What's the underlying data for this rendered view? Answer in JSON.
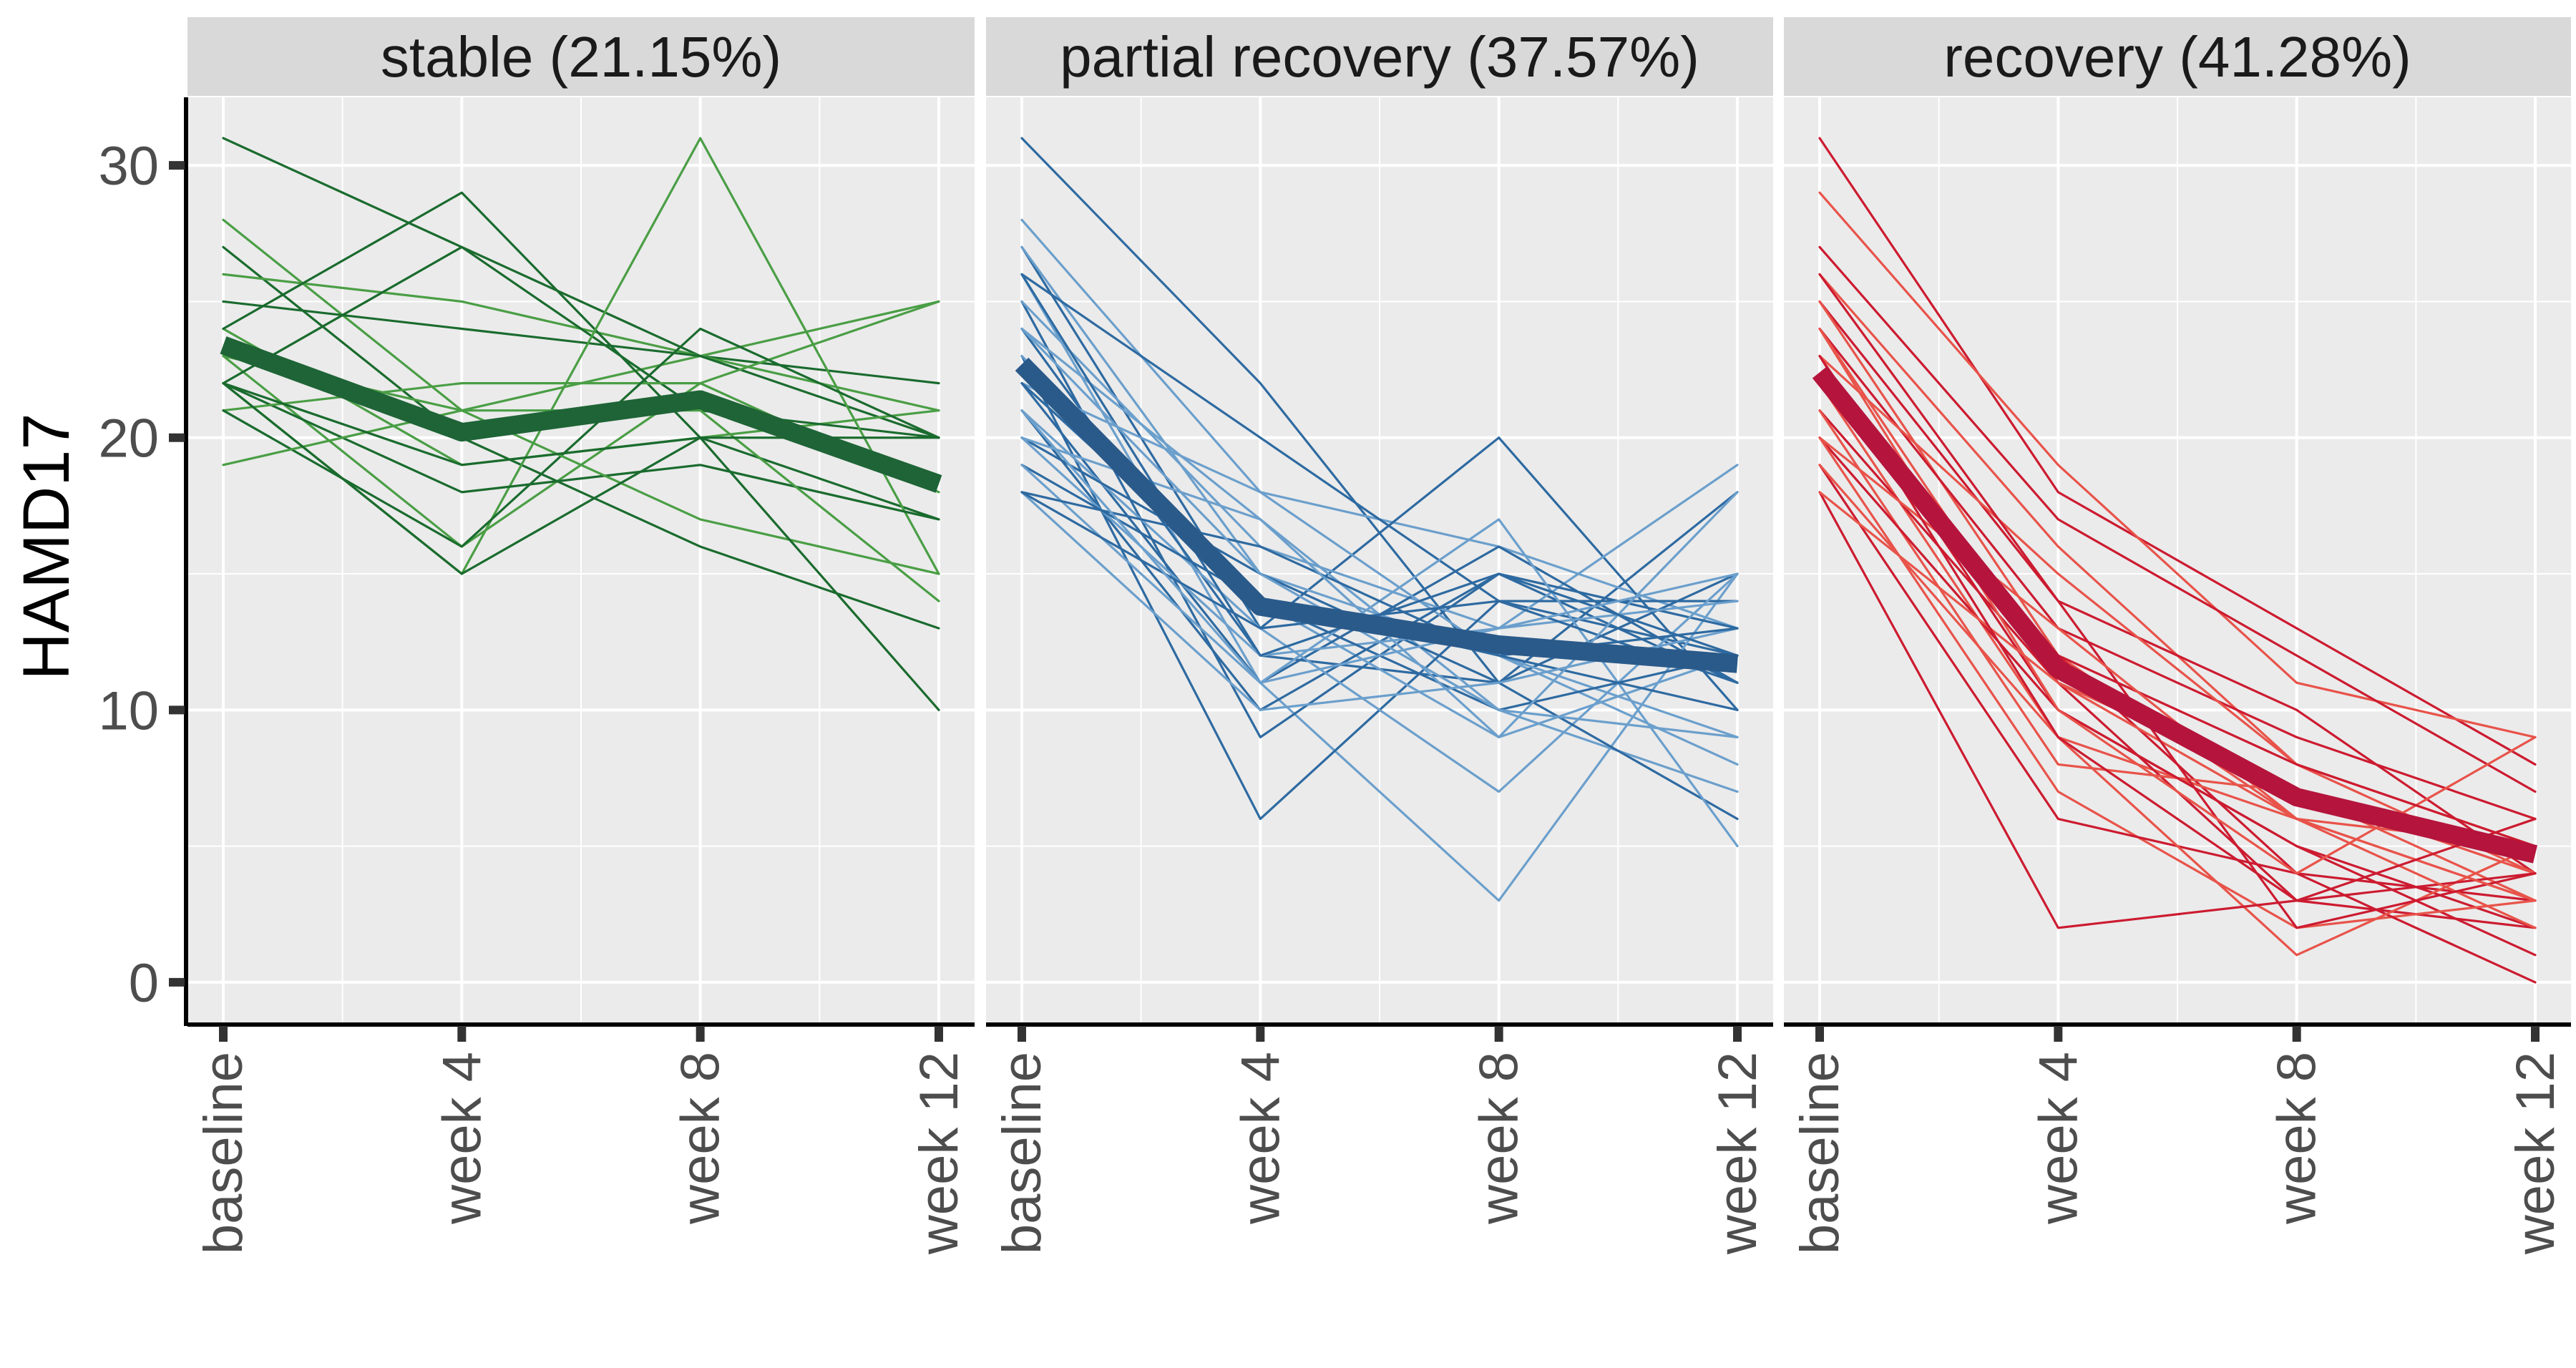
{
  "chart_data": {
    "type": "line",
    "ylabel": "HAMD17",
    "xlabel": "",
    "x": [
      "baseline",
      "week 4",
      "week 8",
      "week 12"
    ],
    "ylim": [
      -1.5,
      32.5
    ],
    "yticks": [
      0,
      10,
      20,
      30
    ],
    "grid": true,
    "legend": "none",
    "panels": [
      {
        "title": "stable (21.15%)",
        "line_colors": [
          "#1a6b2e",
          "#4a9e45"
        ],
        "mean_color": "#1e6436",
        "mean": [
          23.4,
          20.2,
          21.4,
          18.3
        ],
        "individual": [
          [
            31,
            27,
            23,
            22
          ],
          [
            28,
            21,
            23,
            25
          ],
          [
            27,
            20,
            16,
            13
          ],
          [
            26,
            25,
            23,
            21
          ],
          [
            25,
            24,
            23,
            20
          ],
          [
            24,
            19,
            20,
            21
          ],
          [
            24,
            29,
            20,
            17
          ],
          [
            23,
            16,
            22,
            25
          ],
          [
            22,
            27,
            21,
            20
          ],
          [
            22,
            15,
            31,
            15
          ],
          [
            22,
            18,
            19,
            17
          ],
          [
            21,
            22,
            22,
            18
          ],
          [
            21,
            16,
            24,
            20
          ],
          [
            19,
            21,
            17,
            15
          ],
          [
            22,
            15,
            20,
            10
          ],
          [
            23,
            21,
            21,
            14
          ],
          [
            22,
            19,
            20,
            20
          ]
        ]
      },
      {
        "title": "partial recovery (37.57%)",
        "line_colors": [
          "#2e6aa1",
          "#6b9fcc"
        ],
        "mean_color": "#2a5a8a",
        "mean": [
          22.7,
          13.8,
          12.4,
          11.7
        ],
        "individual": [
          [
            31,
            22,
            11,
            18
          ],
          [
            28,
            18,
            16,
            13
          ],
          [
            27,
            13,
            20,
            10
          ],
          [
            27,
            15,
            12,
            8
          ],
          [
            26,
            20,
            14,
            12
          ],
          [
            26,
            11,
            3,
            15
          ],
          [
            25,
            9,
            15,
            11
          ],
          [
            25,
            16,
            13,
            19
          ],
          [
            24,
            12,
            11,
            15
          ],
          [
            24,
            17,
            10,
            7
          ],
          [
            23,
            6,
            14,
            14
          ],
          [
            23,
            14,
            9,
            12
          ],
          [
            22,
            11,
            16,
            11
          ],
          [
            22,
            18,
            12,
            9
          ],
          [
            21,
            10,
            15,
            13
          ],
          [
            21,
            13,
            7,
            15
          ],
          [
            20,
            15,
            11,
            6
          ],
          [
            20,
            12,
            13,
            14
          ],
          [
            19,
            14,
            10,
            12
          ],
          [
            19,
            11,
            17,
            5
          ],
          [
            18,
            16,
            12,
            10
          ],
          [
            18,
            10,
            11,
            13
          ],
          [
            18,
            13,
            14,
            11
          ],
          [
            20,
            17,
            9,
            18
          ],
          [
            26,
            12,
            15,
            12
          ],
          [
            24,
            15,
            10,
            9
          ],
          [
            22,
            14,
            12,
            13
          ],
          [
            21,
            11,
            13,
            15
          ]
        ]
      },
      {
        "title": "recovery (41.28%)",
        "line_colors": [
          "#cc1b30",
          "#e8534a"
        ],
        "mean_color": "#b5143c",
        "mean": [
          22.4,
          11.5,
          6.8,
          4.7
        ],
        "individual": [
          [
            31,
            18,
            13,
            8
          ],
          [
            29,
            19,
            11,
            9
          ],
          [
            27,
            17,
            12,
            7
          ],
          [
            26,
            16,
            8,
            5
          ],
          [
            25,
            14,
            10,
            4
          ],
          [
            25,
            12,
            6,
            3
          ],
          [
            24,
            13,
            9,
            6
          ],
          [
            24,
            11,
            7,
            3
          ],
          [
            23,
            10,
            5,
            2
          ],
          [
            23,
            15,
            8,
            4
          ],
          [
            22,
            12,
            4,
            3
          ],
          [
            22,
            9,
            6,
            5
          ],
          [
            21,
            11,
            3,
            2
          ],
          [
            21,
            8,
            7,
            4
          ],
          [
            20,
            10,
            5,
            1
          ],
          [
            20,
            7,
            2,
            3
          ],
          [
            19,
            6,
            4,
            0
          ],
          [
            19,
            9,
            1,
            5
          ],
          [
            18,
            2,
            3,
            4
          ],
          [
            18,
            11,
            6,
            2
          ],
          [
            26,
            14,
            2,
            4
          ],
          [
            24,
            10,
            4,
            9
          ],
          [
            22,
            12,
            8,
            5
          ],
          [
            20,
            13,
            6,
            3
          ],
          [
            23,
            9,
            3,
            6
          ]
        ]
      }
    ]
  }
}
